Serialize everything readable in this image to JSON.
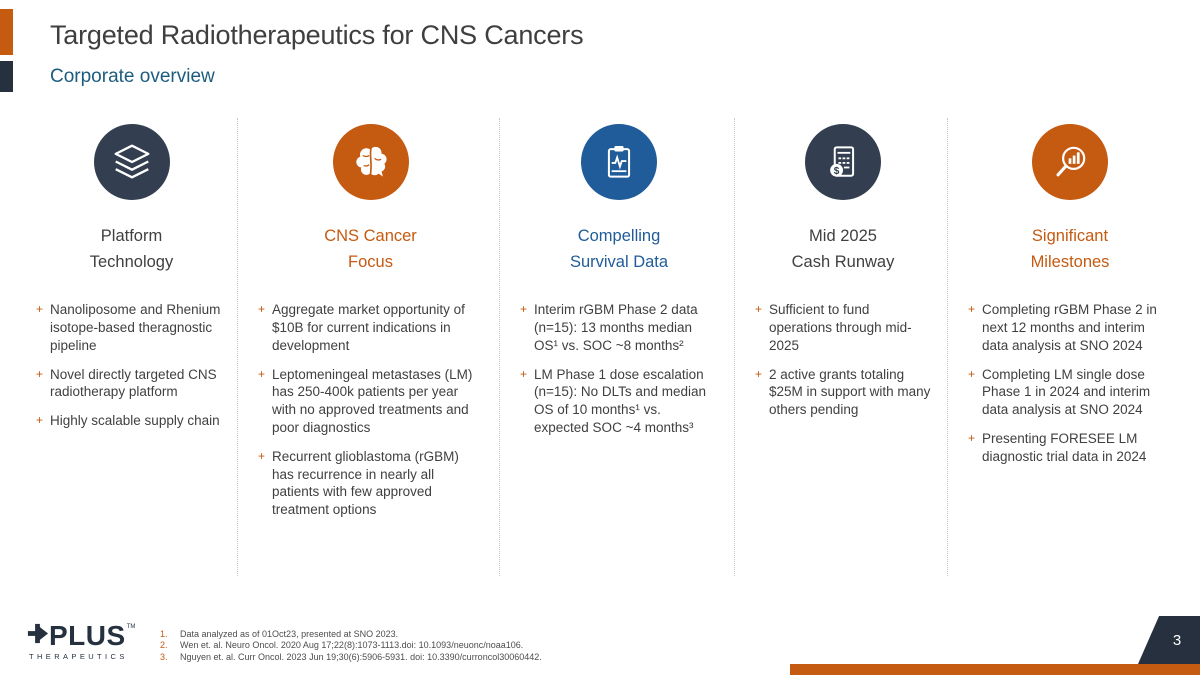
{
  "slide": {
    "title": "Targeted Radiotherapeutics for CNS Cancers",
    "subtitle": "Corporate overview",
    "page_number": "3"
  },
  "bullet_marker": "+",
  "colors": {
    "orange": "#C55A11",
    "navy_circle": "#333F50",
    "dark_navy": "#27303F",
    "blue": "#1F5C99",
    "subtitle_blue": "#1C5C7F",
    "body_text": "#404040",
    "footnote_text": "#4D4D4D"
  },
  "columns": [
    {
      "id": "platform-technology",
      "icon": "layers-icon",
      "circle_color": "#333F50",
      "title_line1": "Platform",
      "title_line2": "Technology",
      "title_color": "#404040",
      "bullets": [
        "Nanoliposome and Rhenium isotope-based theragnostic pipeline",
        "Novel directly targeted CNS radiotherapy platform",
        "Highly scalable supply chain"
      ]
    },
    {
      "id": "cns-cancer-focus",
      "icon": "brain-icon",
      "circle_color": "#C55A11",
      "title_line1": "CNS Cancer",
      "title_line2": "Focus",
      "title_color": "#C55A11",
      "bullets": [
        "Aggregate market opportunity of $10B for current indications in development",
        "Leptomeningeal metastases (LM) has 250-400k patients per year with no approved treatments and poor diagnostics",
        "Recurrent glioblastoma (rGBM) has recurrence in nearly all patients with few approved treatment options"
      ]
    },
    {
      "id": "compelling-survival-data",
      "icon": "clipboard-pulse-icon",
      "circle_color": "#1F5C99",
      "title_line1": "Compelling",
      "title_line2": "Survival Data",
      "title_color": "#1F5C99",
      "bullets": [
        "Interim rGBM Phase 2 data (n=15): 13 months median OS¹ vs. SOC ~8 months²",
        "LM Phase 1 dose escalation (n=15): No DLTs and median OS of 10 months¹ vs. expected SOC ~4 months³"
      ]
    },
    {
      "id": "mid-2025-cash-runway",
      "icon": "calculator-dollar-icon",
      "circle_color": "#333F50",
      "title_line1": "Mid 2025",
      "title_line2": "Cash Runway",
      "title_color": "#404040",
      "bullets": [
        "Sufficient to fund operations through mid-2025",
        "2 active grants totaling $25M in support with many others pending"
      ]
    },
    {
      "id": "significant-milestones",
      "icon": "magnifier-chart-icon",
      "circle_color": "#C55A11",
      "title_line1": "Significant",
      "title_line2": "Milestones",
      "title_color": "#C55A11",
      "bullets": [
        "Completing rGBM Phase 2 in next 12 months and interim data analysis at SNO 2024",
        "Completing LM single dose Phase 1 in 2024 and interim data analysis at SNO 2024",
        "Presenting FORESEE LM diagnostic trial data in 2024"
      ]
    }
  ],
  "footnotes": [
    {
      "num": "1.",
      "text": "Data analyzed as of 01Oct23, presented at SNO 2023."
    },
    {
      "num": "2.",
      "text": "Wen et. al. Neuro Oncol. 2020 Aug 17;22(8):1073-1113.doi: 10.1093/neuonc/noaa106."
    },
    {
      "num": "3.",
      "text": "Nguyen et. al. Curr Oncol. 2023 Jun 19;30(6):5906-5931. doi: 10.3390/curroncol30060442."
    }
  ],
  "logo": {
    "wordmark": "PLUS",
    "tm": "TM",
    "subtext": "THERAPEUTICS"
  }
}
